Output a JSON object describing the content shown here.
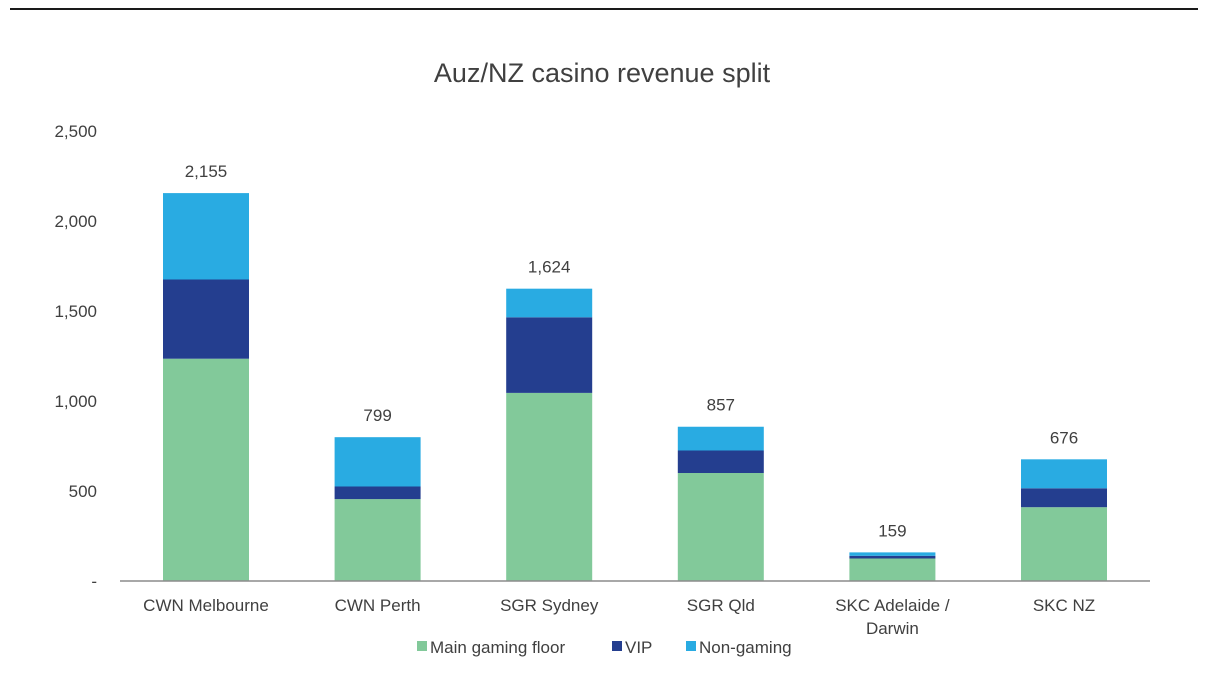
{
  "chart_data": {
    "type": "bar",
    "stacked": true,
    "title": "Auz/NZ casino revenue split",
    "xlabel": "",
    "ylabel": "",
    "ylim": [
      0,
      2500
    ],
    "y_ticks": [
      {
        "value": 0,
        "label": "-"
      },
      {
        "value": 500,
        "label": "500"
      },
      {
        "value": 1000,
        "label": "1,000"
      },
      {
        "value": 1500,
        "label": "1,500"
      },
      {
        "value": 2000,
        "label": "2,000"
      },
      {
        "value": 2500,
        "label": "2,500"
      }
    ],
    "grid": false,
    "legend_position": "bottom",
    "categories": [
      [
        "CWN Melbourne"
      ],
      [
        "CWN Perth"
      ],
      [
        "SGR Sydney"
      ],
      [
        "SGR Qld"
      ],
      [
        "SKC Adelaide /",
        "Darwin"
      ],
      [
        "SKC NZ"
      ]
    ],
    "totals": [
      "2,155",
      "799",
      "1,624",
      "857",
      "159",
      "676"
    ],
    "series": [
      {
        "name": "Main gaming floor",
        "color": "#82c99a",
        "values": [
          1235,
          455,
          1045,
          600,
          125,
          410
        ]
      },
      {
        "name": "VIP",
        "color": "#243e8f",
        "values": [
          440,
          70,
          420,
          125,
          15,
          105
        ]
      },
      {
        "name": "Non-gaming",
        "color": "#29abe2",
        "values": [
          480,
          274,
          159,
          132,
          19,
          161
        ]
      }
    ]
  }
}
